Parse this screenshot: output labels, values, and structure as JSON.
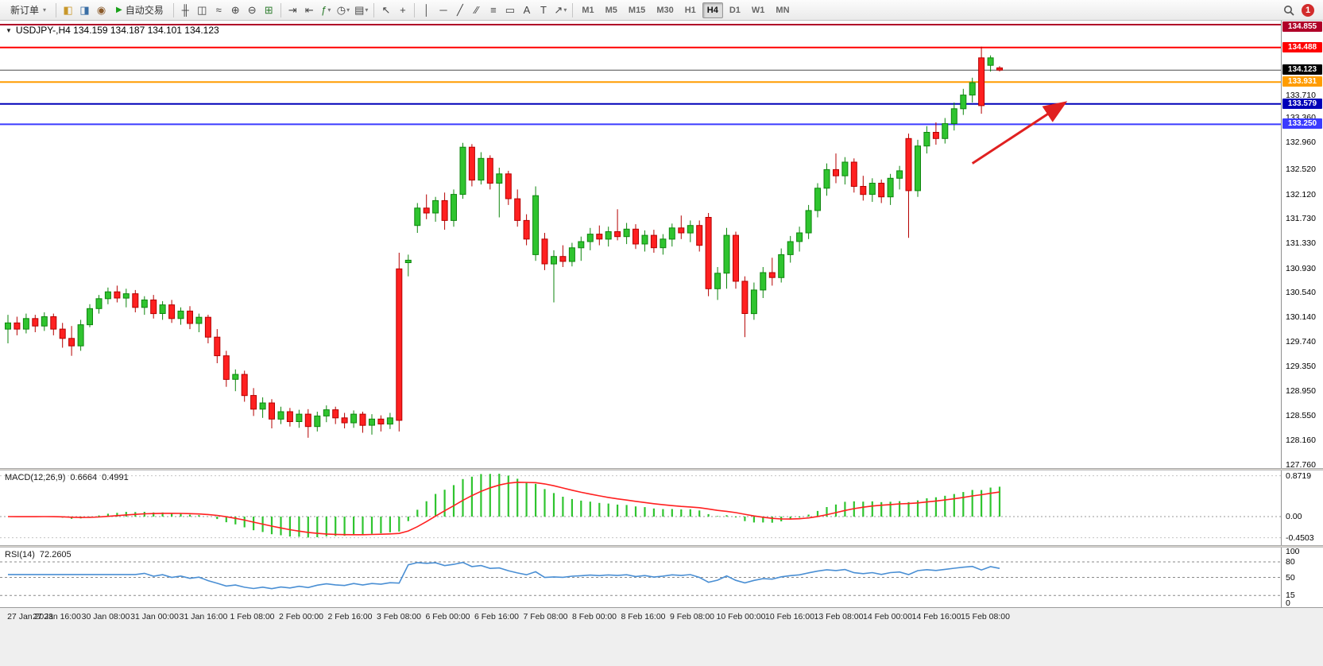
{
  "toolbar": {
    "caret_icon": "▾",
    "play_icon": "▶",
    "badge": "1",
    "timeframes": {
      "options": [
        "M1",
        "M5",
        "M15",
        "M30",
        "H1",
        "H4",
        "D1",
        "W1",
        "MN"
      ],
      "active": "H4"
    },
    "items": [
      {
        "kind": "button",
        "name": "new-order-button",
        "label": "新订单",
        "caret": true
      },
      {
        "kind": "sep"
      },
      {
        "kind": "icon",
        "name": "market-watch-icon",
        "glyph": "◧",
        "color": "#c8972a"
      },
      {
        "kind": "icon",
        "name": "data-window-icon",
        "glyph": "◨",
        "color": "#3a6ea5"
      },
      {
        "kind": "icon",
        "name": "terminal-icon",
        "glyph": "◉",
        "color": "#8a5a2a"
      },
      {
        "kind": "button",
        "name": "auto-trading-button",
        "label": "自动交易",
        "play": true
      },
      {
        "kind": "sep"
      },
      {
        "kind": "icon",
        "name": "bars-chart-icon",
        "glyph": "╫",
        "color": "#444"
      },
      {
        "kind": "icon",
        "name": "candlestick-chart-icon",
        "glyph": "◫",
        "color": "#444"
      },
      {
        "kind": "icon",
        "name": "line-chart-icon",
        "glyph": "≈",
        "color": "#444"
      },
      {
        "kind": "icon",
        "name": "zoom-in-icon",
        "glyph": "⊕",
        "color": "#444"
      },
      {
        "kind": "icon",
        "name": "zoom-out-icon",
        "glyph": "⊖",
        "color": "#444"
      },
      {
        "kind": "icon",
        "name": "tile-windows-icon",
        "glyph": "⊞",
        "color": "#2f7d2f"
      },
      {
        "kind": "sep"
      },
      {
        "kind": "icon",
        "name": "auto-scroll-icon",
        "glyph": "⇥",
        "color": "#444"
      },
      {
        "kind": "icon",
        "name": "chart-shift-icon",
        "glyph": "⇤",
        "color": "#444"
      },
      {
        "kind": "icon",
        "name": "indicators-icon",
        "glyph": "ƒ",
        "color": "#2f7d2f",
        "caret": true
      },
      {
        "kind": "icon",
        "name": "periods-icon",
        "glyph": "◷",
        "color": "#444",
        "caret": true
      },
      {
        "kind": "icon",
        "name": "templates-icon",
        "glyph": "▤",
        "color": "#444",
        "caret": true
      },
      {
        "kind": "sep"
      },
      {
        "kind": "icon",
        "name": "cursor-icon",
        "glyph": "↖",
        "color": "#444"
      },
      {
        "kind": "icon",
        "name": "crosshair-icon",
        "glyph": "+",
        "color": "#444"
      },
      {
        "kind": "sep"
      },
      {
        "kind": "icon",
        "name": "vertical-line-icon",
        "glyph": "│",
        "color": "#444"
      },
      {
        "kind": "icon",
        "name": "horizontal-line-icon",
        "glyph": "─",
        "color": "#444"
      },
      {
        "kind": "icon",
        "name": "trendline-icon",
        "glyph": "╱",
        "color": "#444"
      },
      {
        "kind": "icon",
        "name": "channel-icon",
        "glyph": "∕∕",
        "color": "#444"
      },
      {
        "kind": "icon",
        "name": "fibonacci-icon",
        "glyph": "≡",
        "color": "#444"
      },
      {
        "kind": "icon",
        "name": "shapes-icon",
        "glyph": "▭",
        "color": "#444"
      },
      {
        "kind": "icon",
        "name": "text-icon",
        "glyph": "A",
        "color": "#444"
      },
      {
        "kind": "icon",
        "name": "text-label-icon",
        "glyph": "T",
        "color": "#444"
      },
      {
        "kind": "icon",
        "name": "arrows-tool-icon",
        "glyph": "↗",
        "color": "#444",
        "caret": true
      },
      {
        "kind": "sep"
      },
      {
        "kind": "timeframes"
      },
      {
        "kind": "spacer"
      },
      {
        "kind": "icon",
        "name": "search-icon",
        "svg": "search"
      },
      {
        "kind": "badge",
        "name": "notifications-badge",
        "label": "1"
      }
    ]
  },
  "chart": {
    "collapse_icon": "▼",
    "title": "USDJPY-,H4 134.159 134.187 134.101 134.123",
    "symbol": "USDJPY-",
    "period": "H4",
    "open": "134.159",
    "high": "134.187",
    "low": "134.101",
    "close": "134.123"
  },
  "colors": {
    "bull": "#2fc42f",
    "bull_border": "#0e860e",
    "bear": "#ff2020",
    "bear_border": "#b50000",
    "macd_hist": "#2fc42f",
    "macd_signal": "#ff2020",
    "rsi_line": "#4a8fd4",
    "arrow": "#e02020"
  },
  "hlines": [
    {
      "price": 134.855,
      "color": "#b00028",
      "width": 2
    },
    {
      "price": 134.488,
      "color": "#ff0000",
      "width": 2
    },
    {
      "price": 134.123,
      "color": "#4a4a4a",
      "width": 1,
      "tag": "#000000"
    },
    {
      "price": 133.931,
      "color": "#ff9c00",
      "width": 2
    },
    {
      "price": 133.579,
      "color": "#0000b8",
      "width": 2
    },
    {
      "price": 133.25,
      "color": "#3b3bff",
      "width": 2
    }
  ],
  "price_axis": {
    "ticks": [
      "133.710",
      "133.360",
      "132.960",
      "132.520",
      "132.120",
      "131.730",
      "131.330",
      "130.930",
      "130.540",
      "130.140",
      "129.740",
      "129.350",
      "128.950",
      "128.550",
      "128.160",
      "127.760"
    ]
  },
  "macd": {
    "label": "MACD(12,26,9)",
    "main": "0.6664",
    "signal": "0.4991",
    "axis_max": "0.8719",
    "axis_zero": "0.00",
    "axis_min": "-0.4503",
    "params": [
      12,
      26,
      9
    ]
  },
  "rsi": {
    "label": "RSI(14)",
    "value": "72.2605",
    "period": 14,
    "axis": [
      "100",
      "80",
      "50",
      "15",
      "0"
    ],
    "levels": [
      80,
      50,
      15
    ]
  },
  "annotation": {
    "type": "arrow",
    "color": "#e02020",
    "from": {
      "index": 106,
      "price": 132.62
    },
    "to": {
      "index": 116,
      "price": 133.58
    }
  },
  "time_axis": {
    "labels": [
      "27 Jan 2023",
      "27 Jan 16:00",
      "30 Jan 08:00",
      "31 Jan 00:00",
      "31 Jan 16:00",
      "1 Feb 08:00",
      "2 Feb 00:00",
      "2 Feb 16:00",
      "3 Feb 08:00",
      "6 Feb 00:00",
      "6 Feb 16:00",
      "7 Feb 08:00",
      "8 Feb 00:00",
      "8 Feb 16:00",
      "9 Feb 08:00",
      "10 Feb 00:00",
      "10 Feb 16:00",
      "13 Feb 08:00",
      "14 Feb 00:00",
      "14 Feb 16:00",
      "15 Feb 08:00"
    ]
  },
  "chart_data": {
    "type": "candlestick",
    "symbol": "USDJPY-",
    "timeframe": "H4",
    "y_range": [
      127.76,
      134.93
    ],
    "indicators": [
      "MACD(12,26,9)",
      "RSI(14)"
    ],
    "ohlc": [
      [
        129.95,
        130.18,
        129.72,
        130.05
      ],
      [
        130.05,
        130.15,
        129.85,
        129.95
      ],
      [
        129.95,
        130.2,
        129.88,
        130.12
      ],
      [
        130.12,
        130.18,
        129.9,
        130.0
      ],
      [
        130.0,
        130.22,
        129.92,
        130.15
      ],
      [
        130.15,
        130.2,
        129.85,
        129.95
      ],
      [
        129.95,
        130.05,
        129.65,
        129.8
      ],
      [
        129.8,
        130.0,
        129.52,
        129.68
      ],
      [
        129.68,
        130.1,
        129.6,
        130.02
      ],
      [
        130.02,
        130.35,
        129.98,
        130.28
      ],
      [
        130.28,
        130.5,
        130.2,
        130.44
      ],
      [
        130.44,
        130.62,
        130.35,
        130.55
      ],
      [
        130.55,
        130.65,
        130.38,
        130.45
      ],
      [
        130.45,
        130.6,
        130.3,
        130.52
      ],
      [
        130.52,
        130.58,
        130.22,
        130.3
      ],
      [
        130.3,
        130.48,
        130.18,
        130.42
      ],
      [
        130.42,
        130.5,
        130.12,
        130.2
      ],
      [
        130.2,
        130.4,
        130.1,
        130.34
      ],
      [
        130.34,
        130.42,
        130.05,
        130.12
      ],
      [
        130.12,
        130.3,
        130.02,
        130.24
      ],
      [
        130.24,
        130.32,
        129.95,
        130.04
      ],
      [
        130.04,
        130.2,
        129.9,
        130.14
      ],
      [
        130.14,
        130.18,
        129.72,
        129.82
      ],
      [
        129.82,
        129.95,
        129.4,
        129.52
      ],
      [
        129.52,
        129.6,
        129.02,
        129.14
      ],
      [
        129.14,
        129.3,
        128.95,
        129.22
      ],
      [
        129.22,
        129.28,
        128.78,
        128.88
      ],
      [
        128.88,
        129.0,
        128.55,
        128.66
      ],
      [
        128.66,
        128.85,
        128.52,
        128.76
      ],
      [
        128.76,
        128.82,
        128.35,
        128.5
      ],
      [
        128.5,
        128.7,
        128.42,
        128.62
      ],
      [
        128.62,
        128.68,
        128.38,
        128.46
      ],
      [
        128.46,
        128.65,
        128.36,
        128.58
      ],
      [
        128.58,
        128.66,
        128.2,
        128.38
      ],
      [
        128.38,
        128.62,
        128.3,
        128.55
      ],
      [
        128.55,
        128.72,
        128.45,
        128.65
      ],
      [
        128.65,
        128.7,
        128.42,
        128.52
      ],
      [
        128.52,
        128.6,
        128.35,
        128.44
      ],
      [
        128.44,
        128.64,
        128.36,
        128.58
      ],
      [
        128.58,
        128.62,
        128.28,
        128.4
      ],
      [
        128.4,
        128.58,
        128.25,
        128.5
      ],
      [
        128.5,
        128.56,
        128.3,
        128.42
      ],
      [
        128.42,
        128.6,
        128.34,
        128.52
      ],
      [
        130.92,
        131.18,
        128.3,
        128.48
      ],
      [
        131.02,
        131.15,
        130.8,
        131.06
      ],
      [
        131.62,
        131.98,
        131.5,
        131.9
      ],
      [
        131.9,
        132.12,
        131.72,
        131.82
      ],
      [
        131.82,
        132.08,
        131.68,
        132.02
      ],
      [
        132.02,
        132.15,
        131.55,
        131.7
      ],
      [
        131.7,
        132.2,
        131.6,
        132.12
      ],
      [
        132.12,
        132.95,
        132.05,
        132.88
      ],
      [
        132.88,
        132.93,
        132.25,
        132.35
      ],
      [
        132.35,
        132.8,
        132.28,
        132.7
      ],
      [
        132.7,
        132.75,
        132.2,
        132.3
      ],
      [
        132.3,
        132.55,
        131.75,
        132.45
      ],
      [
        132.45,
        132.5,
        131.95,
        132.05
      ],
      [
        132.05,
        132.2,
        131.6,
        131.7
      ],
      [
        131.7,
        131.8,
        131.3,
        131.4
      ],
      [
        131.15,
        132.25,
        131.05,
        132.1
      ],
      [
        131.4,
        131.5,
        130.9,
        131.0
      ],
      [
        131.0,
        131.22,
        130.38,
        131.12
      ],
      [
        131.12,
        131.3,
        130.95,
        131.04
      ],
      [
        131.04,
        131.34,
        130.96,
        131.26
      ],
      [
        131.26,
        131.44,
        131.05,
        131.36
      ],
      [
        131.36,
        131.58,
        131.22,
        131.48
      ],
      [
        131.48,
        131.62,
        131.3,
        131.4
      ],
      [
        131.4,
        131.6,
        131.28,
        131.52
      ],
      [
        131.52,
        131.88,
        131.38,
        131.44
      ],
      [
        131.44,
        131.66,
        131.32,
        131.56
      ],
      [
        131.56,
        131.64,
        131.24,
        131.32
      ],
      [
        131.32,
        131.54,
        131.2,
        131.46
      ],
      [
        131.46,
        131.55,
        131.18,
        131.26
      ],
      [
        131.26,
        131.48,
        131.15,
        131.4
      ],
      [
        131.4,
        131.65,
        131.28,
        131.58
      ],
      [
        131.58,
        131.78,
        131.4,
        131.5
      ],
      [
        131.5,
        131.7,
        131.35,
        131.62
      ],
      [
        131.62,
        131.7,
        131.2,
        131.3
      ],
      [
        131.75,
        131.82,
        130.48,
        130.6
      ],
      [
        130.6,
        130.95,
        130.42,
        130.85
      ],
      [
        130.85,
        131.58,
        130.6,
        131.46
      ],
      [
        131.46,
        131.52,
        130.6,
        130.72
      ],
      [
        130.72,
        130.8,
        129.82,
        130.2
      ],
      [
        130.2,
        130.7,
        130.1,
        130.58
      ],
      [
        130.58,
        130.95,
        130.45,
        130.86
      ],
      [
        130.86,
        131.1,
        130.65,
        130.78
      ],
      [
        130.78,
        131.25,
        130.7,
        131.15
      ],
      [
        131.15,
        131.45,
        131.02,
        131.36
      ],
      [
        131.36,
        131.6,
        131.2,
        131.5
      ],
      [
        131.5,
        131.95,
        131.4,
        131.86
      ],
      [
        131.86,
        132.3,
        131.75,
        132.22
      ],
      [
        132.22,
        132.62,
        132.1,
        132.52
      ],
      [
        132.52,
        132.78,
        132.3,
        132.42
      ],
      [
        132.42,
        132.72,
        132.28,
        132.64
      ],
      [
        132.64,
        132.7,
        132.15,
        132.25
      ],
      [
        132.25,
        132.42,
        132.02,
        132.12
      ],
      [
        132.12,
        132.38,
        132.0,
        132.3
      ],
      [
        132.3,
        132.36,
        131.98,
        132.08
      ],
      [
        132.08,
        132.45,
        131.95,
        132.38
      ],
      [
        132.38,
        132.58,
        132.2,
        132.5
      ],
      [
        133.02,
        133.1,
        131.42,
        132.18
      ],
      [
        132.18,
        133.0,
        132.08,
        132.9
      ],
      [
        132.9,
        133.22,
        132.78,
        133.12
      ],
      [
        133.12,
        133.28,
        132.92,
        133.02
      ],
      [
        133.02,
        133.35,
        132.94,
        133.26
      ],
      [
        133.26,
        133.6,
        133.15,
        133.5
      ],
      [
        133.5,
        133.82,
        133.4,
        133.72
      ],
      [
        133.72,
        134.0,
        133.6,
        133.92
      ],
      [
        134.32,
        134.5,
        133.42,
        133.55
      ],
      [
        134.2,
        134.36,
        134.1,
        134.32
      ],
      [
        134.159,
        134.187,
        134.101,
        134.123
      ]
    ]
  }
}
